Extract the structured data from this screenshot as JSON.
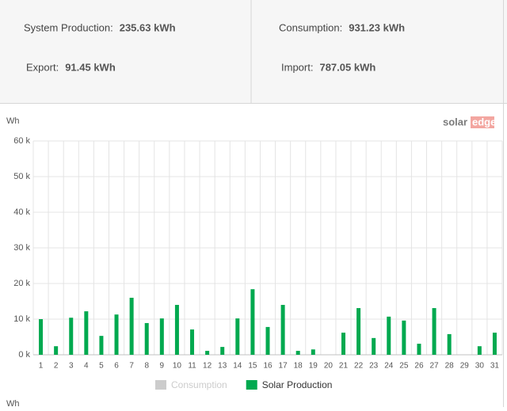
{
  "summary": [
    {
      "label": "System Production:",
      "value": "235.63 kWh",
      "color": "#2e9c3a"
    },
    {
      "label": "Consumption:",
      "value": "931.23 kWh",
      "color": "#e0474c"
    },
    {
      "label": "Export:",
      "value": "91.45 kWh",
      "color": "#2e9c3a"
    },
    {
      "label": "Import:",
      "value": "787.05 kWh",
      "color": "#e0474c"
    }
  ],
  "brand": [
    "solar",
    "edge"
  ],
  "footer_label": "Wh",
  "chart_data": {
    "type": "bar",
    "y_label": "Wh",
    "categories": [
      "1",
      "2",
      "3",
      "4",
      "5",
      "6",
      "7",
      "8",
      "9",
      "10",
      "11",
      "12",
      "13",
      "14",
      "15",
      "16",
      "17",
      "18",
      "19",
      "20",
      "21",
      "22",
      "23",
      "24",
      "25",
      "26",
      "27",
      "28",
      "29",
      "30",
      "31"
    ],
    "series": [
      {
        "name": "Consumption",
        "color": "#cccccc",
        "visible": false,
        "values": [
          null,
          null,
          null,
          null,
          null,
          null,
          null,
          null,
          null,
          null,
          null,
          null,
          null,
          null,
          null,
          null,
          null,
          null,
          null,
          null,
          null,
          null,
          null,
          null,
          null,
          null,
          null,
          null,
          null,
          null,
          null
        ]
      },
      {
        "name": "Solar Production",
        "color": "#00a94f",
        "visible": true,
        "values": [
          10000,
          2400,
          10400,
          12200,
          5300,
          11300,
          16000,
          8900,
          10200,
          14000,
          7100,
          1100,
          2200,
          10200,
          18400,
          7800,
          14000,
          1100,
          1500,
          0,
          6200,
          13100,
          4700,
          10700,
          9600,
          3100,
          13100,
          5800,
          0,
          2400,
          6200
        ]
      }
    ],
    "ylim": [
      0,
      60000
    ],
    "yticks": [
      {
        "value": 0,
        "label": "0 k"
      },
      {
        "value": 10000,
        "label": "10 k"
      },
      {
        "value": 20000,
        "label": "20 k"
      },
      {
        "value": 30000,
        "label": "30 k"
      },
      {
        "value": 40000,
        "label": "40 k"
      },
      {
        "value": 50000,
        "label": "50 k"
      },
      {
        "value": 60000,
        "label": "60 k"
      }
    ],
    "grid": true,
    "legend": "bottom"
  }
}
